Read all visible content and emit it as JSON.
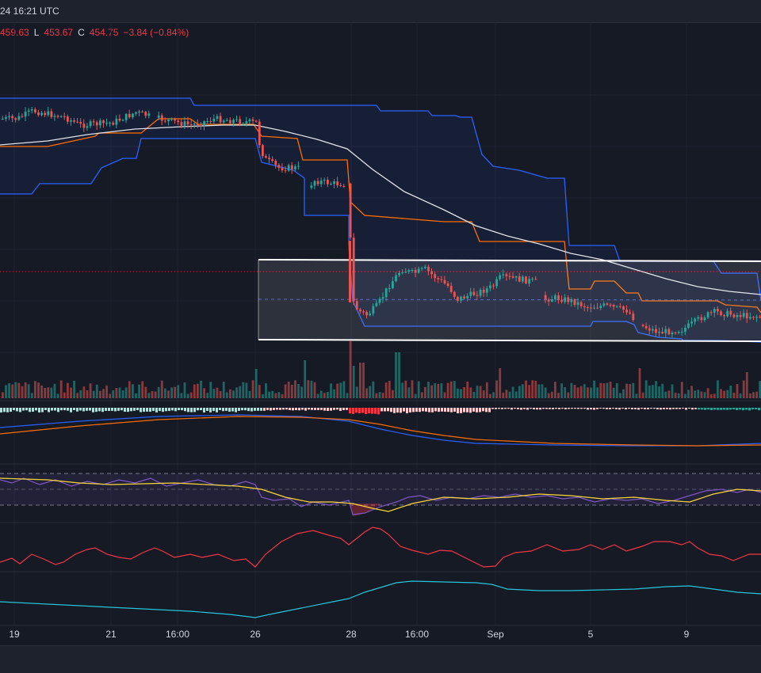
{
  "header": {
    "timestamp_partial": "24 16:21 UTC"
  },
  "ohlc": {
    "high_partial": "459.63",
    "low_label": "L",
    "low_value": "453.67",
    "close_label": "C",
    "close_value": "454.75",
    "change": "−3.84 (−0.84%)"
  },
  "x_axis": {
    "ticks": [
      "19",
      "21",
      "16:00",
      "26",
      "28",
      "16:00",
      "Sep",
      "5",
      "9"
    ]
  },
  "colors": {
    "background": "#161a25",
    "up": "#26a69a",
    "down": "#ef5350",
    "band_upper": "#2962ff",
    "band_middle": "#ff6d00",
    "moving_average": "#e0e3eb",
    "rsi_line": "#7e57c2",
    "rsi_signal": "#fdd835",
    "oscillator_red": "#f23645",
    "oscillator_teal": "#26c6da"
  },
  "chart_data": {
    "type": "candlestick",
    "range_box": {
      "top_price": 470.3,
      "bottom_price": 450.6
    },
    "price_dotted_line": 466.0,
    "y_mapping_reference": {
      "price_high": 500,
      "price_low": 450
    }
  }
}
